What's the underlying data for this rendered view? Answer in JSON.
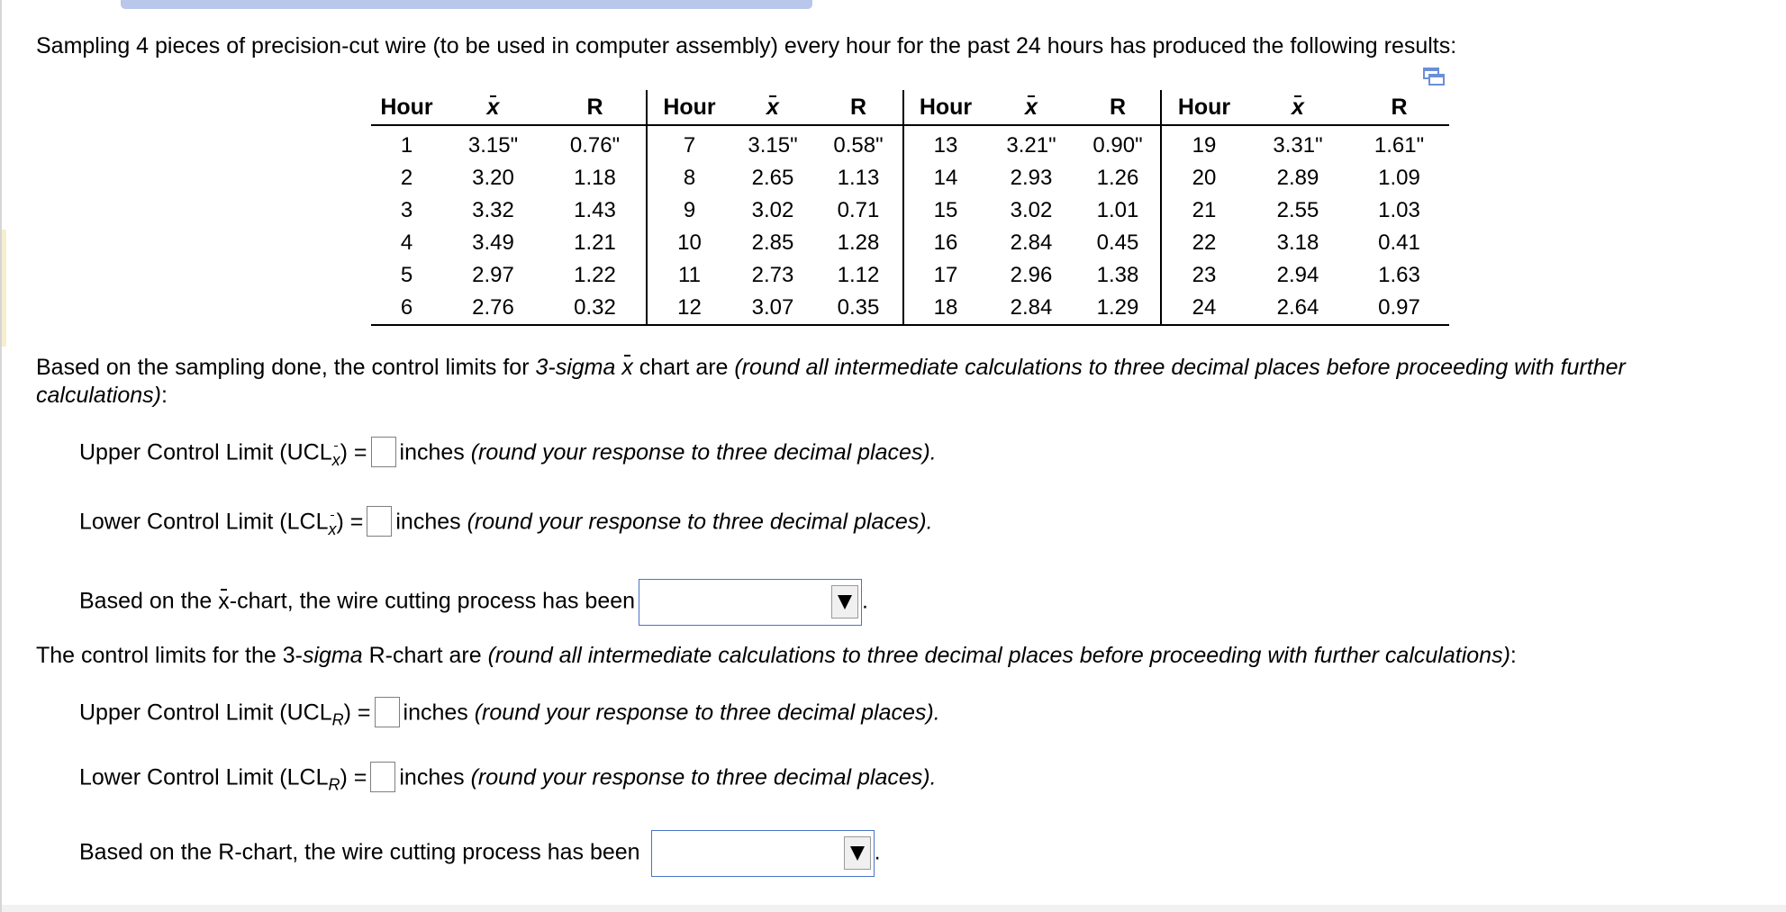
{
  "intro": "Sampling 4 pieces of precision-cut wire (to be used in computer assembly) every hour for the past 24 hours has produced the following results:",
  "table": {
    "headers": [
      "Hour",
      "x",
      "R",
      "Hour",
      "x",
      "R",
      "Hour",
      "x",
      "R",
      "Hour",
      "x",
      "R"
    ],
    "rows": [
      [
        "1",
        "3.15\"",
        "0.76\"",
        "7",
        "3.15\"",
        "0.58\"",
        "13",
        "3.21\"",
        "0.90\"",
        "19",
        "3.31\"",
        "1.61\""
      ],
      [
        "2",
        "3.20",
        "1.18",
        "8",
        "2.65",
        "1.13",
        "14",
        "2.93",
        "1.26",
        "20",
        "2.89",
        "1.09"
      ],
      [
        "3",
        "3.32",
        "1.43",
        "9",
        "3.02",
        "0.71",
        "15",
        "3.02",
        "1.01",
        "21",
        "2.55",
        "1.03"
      ],
      [
        "4",
        "3.49",
        "1.21",
        "10",
        "2.85",
        "1.28",
        "16",
        "2.84",
        "0.45",
        "22",
        "3.18",
        "0.41"
      ],
      [
        "5",
        "2.97",
        "1.22",
        "11",
        "2.73",
        "1.12",
        "17",
        "2.96",
        "1.38",
        "23",
        "2.94",
        "1.63"
      ],
      [
        "6",
        "2.76",
        "0.32",
        "12",
        "3.07",
        "0.35",
        "18",
        "2.84",
        "1.29",
        "24",
        "2.64",
        "0.97"
      ]
    ]
  },
  "xbar_section": {
    "lead_a": "Based on the sampling done, the control limits for ",
    "sigma_word": "3-sigma",
    "x_symbol": "x",
    "lead_b": " chart are ",
    "instruction": "(round all intermediate calculations to three decimal places before proceeding with further calculations)",
    "colon": ":",
    "ucl_label": "Upper Control Limit (UCL",
    "lcl_label": "Lower Control Limit (LCL",
    "sub_x": "x",
    "close_eq": ") =",
    "unit": "inches",
    "round_note": "(round your response to three decimal places).",
    "conclusion_a": "Based on the ",
    "conclusion_x": "x",
    "conclusion_b": "-chart, the wire cutting process has been",
    "period": "."
  },
  "r_section": {
    "lead_a": "The control limits for the 3-",
    "sigma_word": "sigma",
    "lead_b": " R-chart are ",
    "instruction": "(round all intermediate calculations to three decimal places before proceeding with further calculations)",
    "colon": ":",
    "ucl_label": "Upper Control Limit (UCL",
    "lcl_label": "Lower Control Limit (LCL",
    "sub_r": "R",
    "close_eq": ") =",
    "unit": "inches",
    "round_note": "(round your response to three decimal places).",
    "conclusion": "Based on the R-chart, the wire cutting process has been",
    "period": "."
  }
}
